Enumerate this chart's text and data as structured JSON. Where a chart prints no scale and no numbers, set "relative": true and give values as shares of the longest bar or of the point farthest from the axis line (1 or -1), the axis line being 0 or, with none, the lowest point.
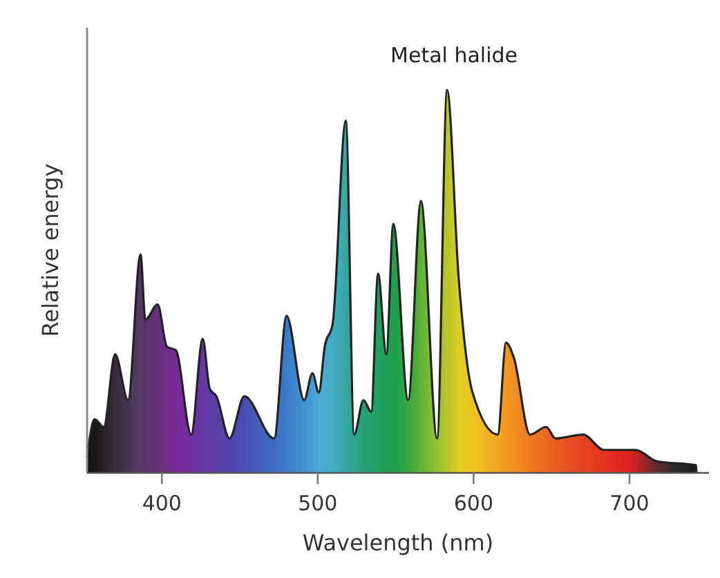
{
  "chart_data": {
    "type": "area",
    "relative": true,
    "xlabel": "Wavelength (nm)",
    "ylabel": "Relative energy",
    "xlim": [
      352,
      751
    ],
    "xticks": [
      400,
      500,
      600,
      700
    ],
    "grid": false,
    "series": [
      {
        "name": "Metal halide",
        "color": "#222222",
        "x": [
          352,
          356.8,
          362.7,
          370,
          378.3,
          386.3,
          389.4,
          397.3,
          403.2,
          409,
          418.8,
          426.2,
          430.7,
          435,
          443.4,
          452.9,
          472,
          480,
          491.3,
          496.6,
          500.7,
          504.5,
          509.6,
          518,
          523.4,
          529.3,
          534.3,
          538.7,
          544,
          548.5,
          558,
          566.2,
          576.6,
          583,
          590.4,
          599.3,
          615.5,
          620.8,
          625.9,
          636.2,
          646.6,
          652.5,
          670.3,
          683.6,
          704,
          717.7,
          742.8,
          743
        ],
        "values": [
          0.04,
          0.14,
          0.12,
          0.31,
          0.19,
          0.57,
          0.4,
          0.44,
          0.33,
          0.32,
          0.1,
          0.35,
          0.22,
          0.2,
          0.09,
          0.2,
          0.09,
          0.41,
          0.19,
          0.26,
          0.21,
          0.33,
          0.39,
          0.92,
          0.1,
          0.19,
          0.16,
          0.52,
          0.31,
          0.65,
          0.19,
          0.71,
          0.09,
          1,
          0.51,
          0.21,
          0.1,
          0.34,
          0.3,
          0.1,
          0.12,
          0.09,
          0.1,
          0.06,
          0.06,
          0.03,
          0.02,
          0
        ]
      }
    ]
  }
}
